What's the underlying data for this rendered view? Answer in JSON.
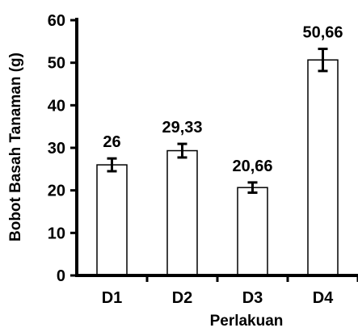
{
  "chart_data": {
    "type": "bar",
    "title": "",
    "xlabel": "Perlakuan",
    "ylabel": "Bobot Basah Tanaman (g)",
    "categories": [
      "D1",
      "D2",
      "D3",
      "D4"
    ],
    "values": [
      26,
      29.33,
      20.66,
      50.66
    ],
    "value_labels": [
      "26",
      "29,33",
      "20,66",
      "50,66"
    ],
    "error_bars": [
      1.5,
      1.6,
      1.2,
      2.6
    ],
    "ylim": [
      0,
      60
    ],
    "yticks": [
      0,
      10,
      20,
      30,
      40,
      50,
      60
    ],
    "grid": false,
    "legend": "none",
    "colors": {
      "bar_fill": "#ffffff",
      "bar_stroke": "#000000",
      "axis": "#000000"
    }
  }
}
